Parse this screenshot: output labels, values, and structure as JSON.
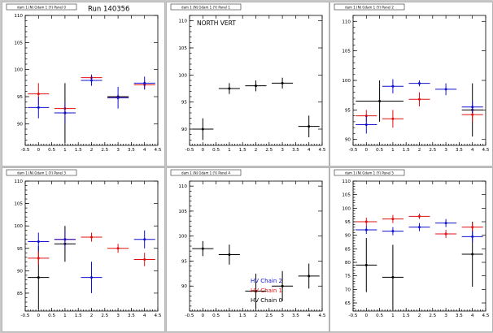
{
  "canvas_title": "Run 140356",
  "colors": {
    "black": "#000000",
    "red": "#e01010",
    "blue": "#1010d0"
  },
  "chart_data": [
    {
      "type": "scatter",
      "pad_title": "dam 1 (N) Gdam 1 (Y) Panel 0",
      "title": "",
      "xlim": [
        -0.5,
        4.5
      ],
      "ylim": [
        86,
        110
      ],
      "xticks": [
        -0.5,
        0,
        0.5,
        1,
        1.5,
        2,
        2.5,
        3,
        3.5,
        4,
        4.5
      ],
      "xticklabels": [
        "-0.5",
        "0",
        "0.5",
        "1",
        "1.5",
        "2",
        "2.5",
        "3",
        "3.5",
        "4",
        "4.5"
      ],
      "yticks": [
        90,
        95,
        100,
        105,
        110
      ],
      "yticklabels": [
        "90",
        "95",
        "100",
        "105",
        "110"
      ],
      "annotation": "",
      "legend": [],
      "series": [
        {
          "color": "black",
          "points": [
            {
              "x": 1,
              "y": 92,
              "xerr": 0.4,
              "yerr": 5.5
            },
            {
              "x": 3,
              "y": 95,
              "xerr": 0.4,
              "yerr": 0.4
            }
          ]
        },
        {
          "color": "red",
          "points": [
            {
              "x": 0,
              "y": 95.5,
              "xerr": 0.4,
              "yerr": 2
            },
            {
              "x": 1,
              "y": 92.8,
              "xerr": 0.4,
              "yerr": 1
            },
            {
              "x": 2,
              "y": 98.5,
              "xerr": 0.4,
              "yerr": 0.6
            },
            {
              "x": 3,
              "y": 94.8,
              "xerr": 0.4,
              "yerr": 0.4
            },
            {
              "x": 4,
              "y": 97.2,
              "xerr": 0.4,
              "yerr": 0.8
            }
          ]
        },
        {
          "color": "blue",
          "points": [
            {
              "x": 0,
              "y": 93,
              "xerr": 0.4,
              "yerr": 2
            },
            {
              "x": 1,
              "y": 92,
              "xerr": 0.4,
              "yerr": 2
            },
            {
              "x": 2,
              "y": 98,
              "xerr": 0.4,
              "yerr": 1
            },
            {
              "x": 3,
              "y": 94.8,
              "xerr": 0.4,
              "yerr": 2
            },
            {
              "x": 4,
              "y": 97.5,
              "xerr": 0.4,
              "yerr": 1.2
            }
          ]
        }
      ]
    },
    {
      "type": "scatter",
      "pad_title": "dam 1 (N) Gdam 1 (Y) Panel 1",
      "title": "",
      "xlim": [
        -0.5,
        4.5
      ],
      "ylim": [
        87,
        111
      ],
      "xticks": [
        -0.5,
        0,
        0.5,
        1,
        1.5,
        2,
        2.5,
        3,
        3.5,
        4,
        4.5
      ],
      "xticklabels": [
        "-0.5",
        "0",
        "0.5",
        "1",
        "1.5",
        "2",
        "2.5",
        "3",
        "3.5",
        "4",
        "4.5"
      ],
      "yticks": [
        90,
        95,
        100,
        105,
        110
      ],
      "yticklabels": [
        "90",
        "95",
        "100",
        "105",
        "110"
      ],
      "annotation": "NORTH VERT",
      "legend": [],
      "series": [
        {
          "color": "black",
          "points": [
            {
              "x": 0,
              "y": 90,
              "xerr": 0.4,
              "yerr": 2
            },
            {
              "x": 1,
              "y": 97.5,
              "xerr": 0.4,
              "yerr": 1
            },
            {
              "x": 2,
              "y": 98,
              "xerr": 0.4,
              "yerr": 1
            },
            {
              "x": 3,
              "y": 98.5,
              "xerr": 0.4,
              "yerr": 1
            },
            {
              "x": 4,
              "y": 90.5,
              "xerr": 0.4,
              "yerr": 2
            }
          ]
        }
      ]
    },
    {
      "type": "scatter",
      "pad_title": "dam 1 (N) Gdam 1 (Y) Panel 2",
      "title": "",
      "xlim": [
        -0.5,
        4.5
      ],
      "ylim": [
        89,
        111
      ],
      "xticks": [
        -0.5,
        0,
        0.5,
        1,
        1.5,
        2,
        2.5,
        3,
        3.5,
        4,
        4.5
      ],
      "xticklabels": [
        "-0.5",
        "0",
        "0.5",
        "1",
        "1.5",
        "2",
        "2.5",
        "3",
        "3.5",
        "4",
        "4.5"
      ],
      "yticks": [
        90,
        95,
        100,
        105,
        110
      ],
      "yticklabels": [
        "90",
        "95",
        "100",
        "105",
        "110"
      ],
      "annotation": "",
      "legend": [],
      "series": [
        {
          "color": "black",
          "points": [
            {
              "x": 0.5,
              "y": 96.5,
              "xerr": 0.9,
              "yerr": 3.5
            },
            {
              "x": 4,
              "y": 95,
              "xerr": 0.4,
              "yerr": 4.5
            }
          ]
        },
        {
          "color": "red",
          "points": [
            {
              "x": 0,
              "y": 94,
              "xerr": 0.4,
              "yerr": 1
            },
            {
              "x": 1,
              "y": 93.5,
              "xerr": 0.4,
              "yerr": 1.5
            },
            {
              "x": 2,
              "y": 96.8,
              "xerr": 0.4,
              "yerr": 1.2
            },
            {
              "x": 4,
              "y": 94.2,
              "xerr": 0.4,
              "yerr": 1.2
            }
          ]
        },
        {
          "color": "blue",
          "points": [
            {
              "x": 0,
              "y": 92.5,
              "xerr": 0.4,
              "yerr": 1.5
            },
            {
              "x": 1,
              "y": 99,
              "xerr": 0.4,
              "yerr": 1.2
            },
            {
              "x": 2,
              "y": 99.5,
              "xerr": 0.4,
              "yerr": 0.5
            },
            {
              "x": 3,
              "y": 98.5,
              "xerr": 0.4,
              "yerr": 1
            },
            {
              "x": 4,
              "y": 95.5,
              "xerr": 0.4,
              "yerr": 1
            }
          ]
        }
      ]
    },
    {
      "type": "scatter",
      "pad_title": "dam 1 (N) Gdam 1 (Y) Panel 3",
      "title": "",
      "xlim": [
        -0.5,
        4.5
      ],
      "ylim": [
        81,
        110
      ],
      "xticks": [
        -0.5,
        0,
        0.5,
        1,
        1.5,
        2,
        2.5,
        3,
        3.5,
        4,
        4.5
      ],
      "xticklabels": [
        "-0.5",
        "0",
        "0.5",
        "1",
        "1.5",
        "2",
        "2.5",
        "3",
        "3.5",
        "4",
        "4.5"
      ],
      "yticks": [
        85,
        90,
        95,
        100,
        105,
        110
      ],
      "yticklabels": [
        "85",
        "90",
        "95",
        "100",
        "105",
        "110"
      ],
      "annotation": "",
      "legend": [],
      "series": [
        {
          "color": "black",
          "points": [
            {
              "x": 0,
              "y": 88.5,
              "xerr": 0.4,
              "yerr": 7
            },
            {
              "x": 1,
              "y": 96,
              "xerr": 0.4,
              "yerr": 4
            }
          ]
        },
        {
          "color": "red",
          "points": [
            {
              "x": 0,
              "y": 92.8,
              "xerr": 0.4,
              "yerr": 1.5
            },
            {
              "x": 1,
              "y": 97,
              "xerr": 0.4,
              "yerr": 1.5
            },
            {
              "x": 2,
              "y": 97.5,
              "xerr": 0.4,
              "yerr": 1
            },
            {
              "x": 3,
              "y": 95,
              "xerr": 0.4,
              "yerr": 1
            },
            {
              "x": 4,
              "y": 92.5,
              "xerr": 0.4,
              "yerr": 1.5
            }
          ]
        },
        {
          "color": "blue",
          "points": [
            {
              "x": 0,
              "y": 96.5,
              "xerr": 0.4,
              "yerr": 2
            },
            {
              "x": 1,
              "y": 97,
              "xerr": 0.4,
              "yerr": 2
            },
            {
              "x": 2,
              "y": 88.5,
              "xerr": 0.4,
              "yerr": 3.5
            },
            {
              "x": 4,
              "y": 97,
              "xerr": 0.4,
              "yerr": 2
            }
          ]
        }
      ]
    },
    {
      "type": "scatter",
      "pad_title": "dam 1 (N) Gdam 1 (Y) Panel 4",
      "title": "",
      "xlim": [
        -0.5,
        4.5
      ],
      "ylim": [
        85,
        111
      ],
      "xticks": [
        -0.5,
        0,
        0.5,
        1,
        1.5,
        2,
        2.5,
        3,
        3.5,
        4,
        4.5
      ],
      "xticklabels": [
        "-0.5",
        "0",
        "0.5",
        "1",
        "1.5",
        "2",
        "2.5",
        "3",
        "3.5",
        "4",
        "4.5"
      ],
      "yticks": [
        90,
        95,
        100,
        105,
        110
      ],
      "yticklabels": [
        "90",
        "95",
        "100",
        "105",
        "110"
      ],
      "annotation": "",
      "legend": [
        {
          "label": "HV Chain 2",
          "color": "blue"
        },
        {
          "label": "HV Chain 1",
          "color": "red"
        },
        {
          "label": "HV Chain 0",
          "color": "black"
        }
      ],
      "series": [
        {
          "color": "black",
          "points": [
            {
              "x": 0,
              "y": 97.5,
              "xerr": 0.4,
              "yerr": 1.5
            },
            {
              "x": 1,
              "y": 96.3,
              "xerr": 0.4,
              "yerr": 2
            },
            {
              "x": 2,
              "y": 89,
              "xerr": 0.4,
              "yerr": 3.5
            },
            {
              "x": 3,
              "y": 90,
              "xerr": 0.4,
              "yerr": 3
            },
            {
              "x": 4,
              "y": 92,
              "xerr": 0.4,
              "yerr": 2.5
            }
          ]
        }
      ]
    },
    {
      "type": "scatter",
      "pad_title": "dam 1 (N) Gdam 1 (Y) Panel 5",
      "title": "",
      "xlim": [
        -0.5,
        4.5
      ],
      "ylim": [
        62,
        110
      ],
      "xticks": [
        -0.5,
        0,
        0.5,
        1,
        1.5,
        2,
        2.5,
        3,
        3.5,
        4,
        4.5
      ],
      "xticklabels": [
        "-0.5",
        "0",
        "0.5",
        "1",
        "1.5",
        "2",
        "2.5",
        "3",
        "3.5",
        "4",
        "4.5"
      ],
      "yticks": [
        65,
        70,
        75,
        80,
        85,
        90,
        95,
        100,
        105,
        110
      ],
      "yticklabels": [
        "65",
        "70",
        "75",
        "80",
        "85",
        "90",
        "95",
        "100",
        "105",
        "110"
      ],
      "annotation": "",
      "legend": [],
      "series": [
        {
          "color": "black",
          "points": [
            {
              "x": 0,
              "y": 79,
              "xerr": 0.4,
              "yerr": 10
            },
            {
              "x": 1,
              "y": 74.5,
              "xerr": 0.4,
              "yerr": 12
            },
            {
              "x": 4,
              "y": 83,
              "xerr": 0.4,
              "yerr": 12
            }
          ]
        },
        {
          "color": "red",
          "points": [
            {
              "x": 0,
              "y": 95,
              "xerr": 0.4,
              "yerr": 1.5
            },
            {
              "x": 1,
              "y": 96,
              "xerr": 0.4,
              "yerr": 1.5
            },
            {
              "x": 2,
              "y": 97,
              "xerr": 0.4,
              "yerr": 1
            },
            {
              "x": 3,
              "y": 90.5,
              "xerr": 0.4,
              "yerr": 1.5
            },
            {
              "x": 4,
              "y": 93,
              "xerr": 0.4,
              "yerr": 1.5
            }
          ]
        },
        {
          "color": "blue",
          "points": [
            {
              "x": 0,
              "y": 92,
              "xerr": 0.4,
              "yerr": 1.5
            },
            {
              "x": 1,
              "y": 91.5,
              "xerr": 0.4,
              "yerr": 1.5
            },
            {
              "x": 2,
              "y": 93,
              "xerr": 0.4,
              "yerr": 1.5
            },
            {
              "x": 3,
              "y": 94.5,
              "xerr": 0.4,
              "yerr": 1.5
            },
            {
              "x": 4,
              "y": 89.5,
              "xerr": 0.4,
              "yerr": 2
            }
          ]
        }
      ]
    }
  ]
}
